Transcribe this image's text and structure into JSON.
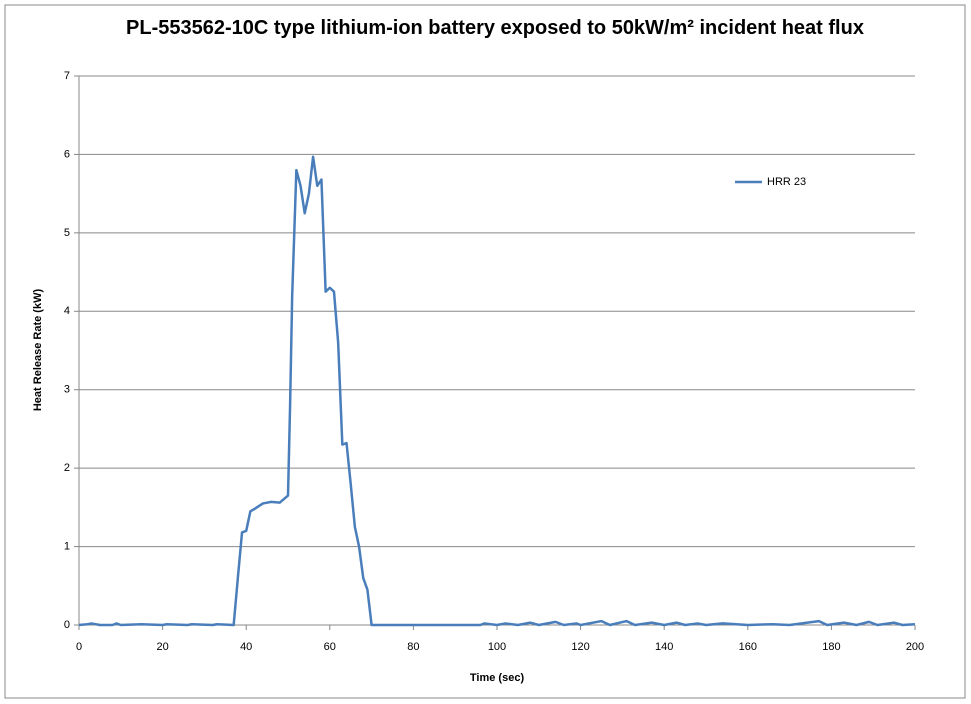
{
  "chart_data": {
    "type": "line",
    "title": "PL-553562-10C type lithium-ion battery exposed to 50kW/m² incident heat flux",
    "xlabel": "Time (sec)",
    "ylabel": "Heat Release Rate (kW)",
    "x": [
      0,
      2,
      3,
      5,
      8,
      9,
      10,
      15,
      20,
      21,
      26,
      27,
      32,
      33,
      37,
      38,
      39,
      40,
      41,
      42,
      44,
      46,
      48,
      50,
      50.5,
      51,
      52,
      53,
      54,
      55,
      56,
      57,
      58,
      59,
      60,
      61,
      62,
      63,
      64,
      65,
      66,
      67,
      68,
      69,
      70,
      80,
      96,
      97,
      100,
      102,
      105,
      108,
      110,
      114,
      116,
      119,
      120,
      125,
      127,
      131,
      133,
      137,
      140,
      143,
      145,
      148,
      150,
      154,
      160,
      166,
      170,
      177,
      179,
      183,
      186,
      189,
      191,
      195,
      197,
      200
    ],
    "series": [
      {
        "name": "HRR 23",
        "color": "#4a7ebb",
        "values": [
          0,
          0.01,
          0.02,
          0,
          0,
          0.02,
          0,
          0.01,
          0,
          0.01,
          0,
          0.01,
          0,
          0.01,
          0,
          0.6,
          1.18,
          1.2,
          1.45,
          1.48,
          1.55,
          1.57,
          1.56,
          1.65,
          2.8,
          4.2,
          5.8,
          5.6,
          5.25,
          5.5,
          5.97,
          5.6,
          5.68,
          4.25,
          4.3,
          4.25,
          3.6,
          2.3,
          2.32,
          1.8,
          1.25,
          1.0,
          0.6,
          0.45,
          0,
          0,
          0,
          0.02,
          0,
          0.02,
          0,
          0.03,
          0,
          0.04,
          0,
          0.02,
          0,
          0.05,
          0,
          0.05,
          0,
          0.03,
          0,
          0.03,
          0,
          0.02,
          0,
          0.02,
          0,
          0.01,
          0,
          0.05,
          0,
          0.03,
          0,
          0.04,
          0,
          0.03,
          0,
          0.01
        ]
      }
    ],
    "xlim": [
      0,
      200
    ],
    "xticks": [
      0,
      20,
      40,
      60,
      80,
      100,
      120,
      140,
      160,
      180,
      200
    ],
    "ylim": [
      0,
      7
    ],
    "yticks": [
      0,
      1,
      2,
      3,
      4,
      5,
      6,
      7
    ],
    "grid": true,
    "legend": "upper right"
  }
}
